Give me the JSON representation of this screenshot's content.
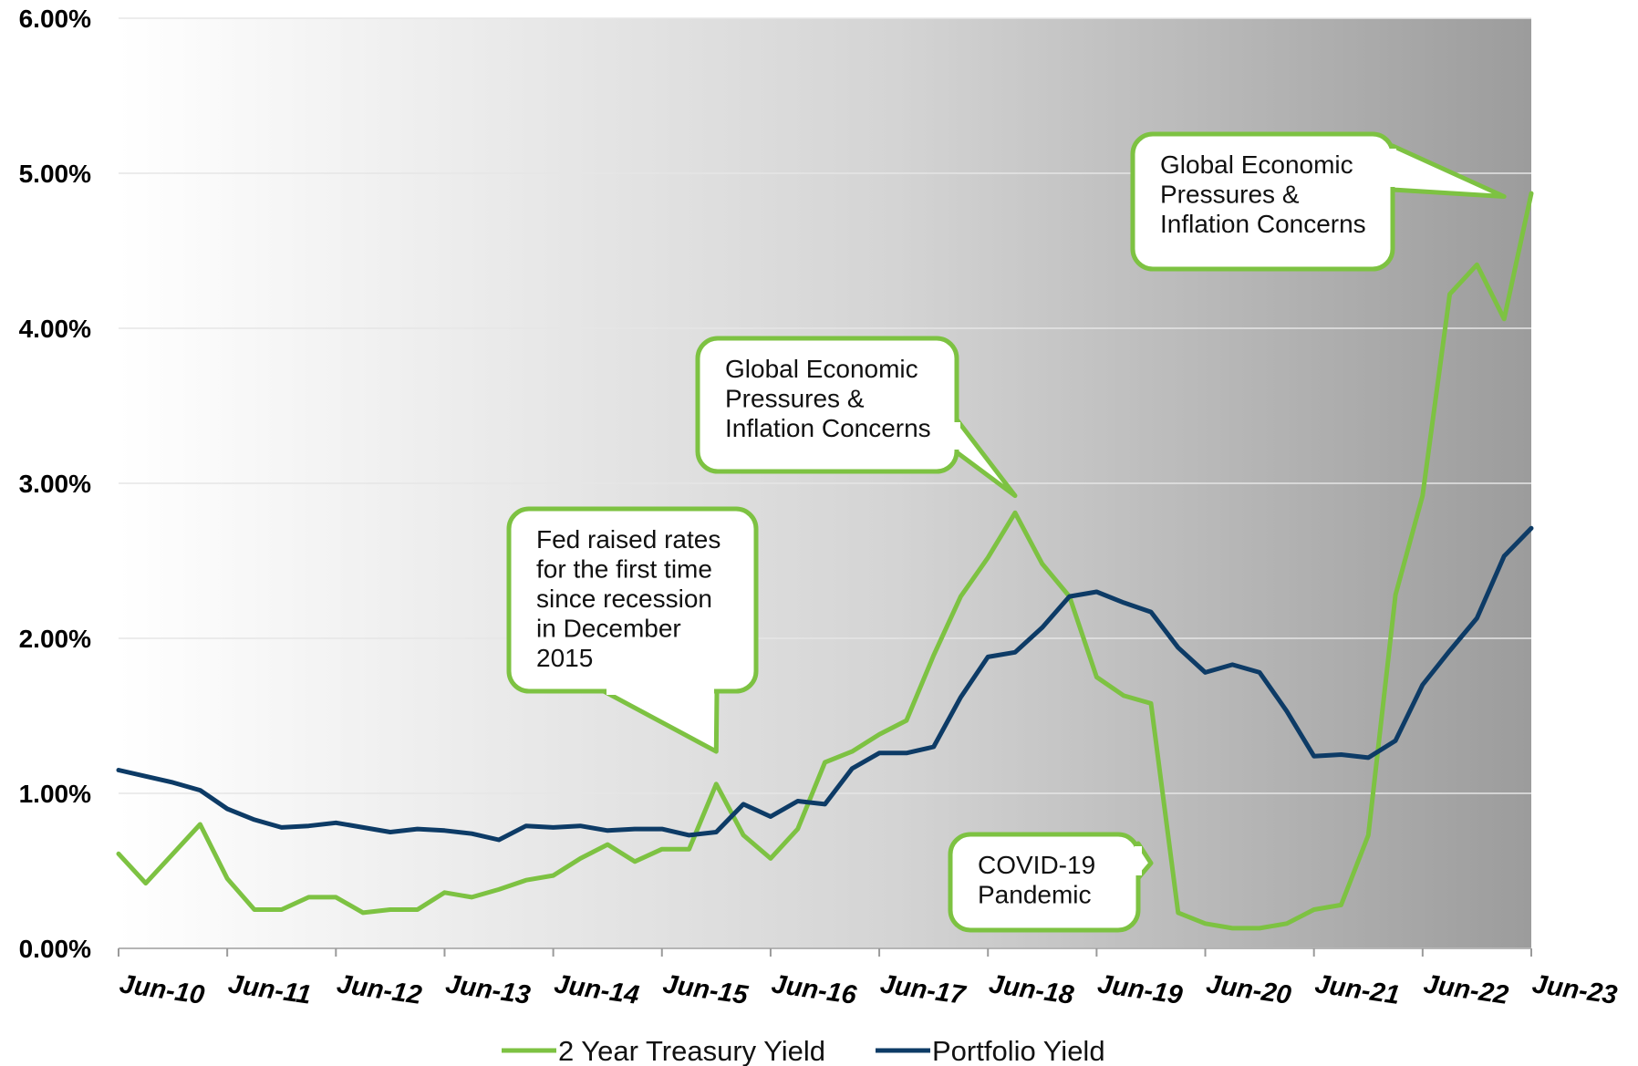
{
  "chart_data": {
    "type": "line",
    "title": "",
    "xlabel": "",
    "ylabel": "",
    "y_tick_labels": [
      "0.00%",
      "1.00%",
      "2.00%",
      "3.00%",
      "4.00%",
      "5.00%",
      "6.00%"
    ],
    "ylim": [
      0,
      6
    ],
    "x_tick_labels": [
      "Jun-10",
      "Jun-11",
      "Jun-12",
      "Jun-13",
      "Jun-14",
      "Jun-15",
      "Jun-16",
      "Jun-17",
      "Jun-18",
      "Jun-19",
      "Jun-20",
      "Jun-21",
      "Jun-22",
      "Jun-23"
    ],
    "xlim": [
      "2010-06",
      "2023-06"
    ],
    "grid": true,
    "legend_position": "bottom",
    "background": "gray gradient, light on left to darker on right",
    "series": [
      {
        "name": "2 Year Treasury Yield",
        "color": "#7DC242",
        "points": [
          [
            "2010-06",
            0.61
          ],
          [
            "2010-09",
            0.42
          ],
          [
            "2010-12",
            0.61
          ],
          [
            "2011-03",
            0.8
          ],
          [
            "2011-06",
            0.45
          ],
          [
            "2011-09",
            0.25
          ],
          [
            "2011-12",
            0.25
          ],
          [
            "2012-03",
            0.33
          ],
          [
            "2012-06",
            0.33
          ],
          [
            "2012-09",
            0.23
          ],
          [
            "2012-12",
            0.25
          ],
          [
            "2013-03",
            0.25
          ],
          [
            "2013-06",
            0.36
          ],
          [
            "2013-09",
            0.33
          ],
          [
            "2013-12",
            0.38
          ],
          [
            "2014-03",
            0.44
          ],
          [
            "2014-06",
            0.47
          ],
          [
            "2014-09",
            0.58
          ],
          [
            "2014-12",
            0.67
          ],
          [
            "2015-03",
            0.56
          ],
          [
            "2015-06",
            0.64
          ],
          [
            "2015-09",
            0.64
          ],
          [
            "2015-12",
            1.06
          ],
          [
            "2016-03",
            0.73
          ],
          [
            "2016-06",
            0.58
          ],
          [
            "2016-09",
            0.77
          ],
          [
            "2016-12",
            1.2
          ],
          [
            "2017-03",
            1.27
          ],
          [
            "2017-06",
            1.38
          ],
          [
            "2017-09",
            1.47
          ],
          [
            "2017-12",
            1.89
          ],
          [
            "2018-03",
            2.27
          ],
          [
            "2018-06",
            2.52
          ],
          [
            "2018-09",
            2.81
          ],
          [
            "2018-12",
            2.48
          ],
          [
            "2019-03",
            2.27
          ],
          [
            "2019-06",
            1.75
          ],
          [
            "2019-09",
            1.63
          ],
          [
            "2019-12",
            1.58
          ],
          [
            "2020-03",
            0.23
          ],
          [
            "2020-06",
            0.16
          ],
          [
            "2020-09",
            0.13
          ],
          [
            "2020-12",
            0.13
          ],
          [
            "2021-03",
            0.16
          ],
          [
            "2021-06",
            0.25
          ],
          [
            "2021-09",
            0.28
          ],
          [
            "2021-12",
            0.73
          ],
          [
            "2022-03",
            2.28
          ],
          [
            "2022-06",
            2.92
          ],
          [
            "2022-09",
            4.22
          ],
          [
            "2022-12",
            4.41
          ],
          [
            "2023-03",
            4.06
          ],
          [
            "2023-06",
            4.87
          ]
        ]
      },
      {
        "name": "Portfolio Yield",
        "color": "#0D3B66",
        "points": [
          [
            "2010-06",
            1.15
          ],
          [
            "2010-09",
            1.11
          ],
          [
            "2010-12",
            1.07
          ],
          [
            "2011-03",
            1.02
          ],
          [
            "2011-06",
            0.9
          ],
          [
            "2011-09",
            0.83
          ],
          [
            "2011-12",
            0.78
          ],
          [
            "2012-03",
            0.79
          ],
          [
            "2012-06",
            0.81
          ],
          [
            "2012-09",
            0.78
          ],
          [
            "2012-12",
            0.75
          ],
          [
            "2013-03",
            0.77
          ],
          [
            "2013-06",
            0.76
          ],
          [
            "2013-09",
            0.74
          ],
          [
            "2013-12",
            0.7
          ],
          [
            "2014-03",
            0.79
          ],
          [
            "2014-06",
            0.78
          ],
          [
            "2014-09",
            0.79
          ],
          [
            "2014-12",
            0.76
          ],
          [
            "2015-03",
            0.77
          ],
          [
            "2015-06",
            0.77
          ],
          [
            "2015-09",
            0.73
          ],
          [
            "2015-12",
            0.75
          ],
          [
            "2016-03",
            0.93
          ],
          [
            "2016-06",
            0.85
          ],
          [
            "2016-09",
            0.95
          ],
          [
            "2016-12",
            0.93
          ],
          [
            "2017-03",
            1.16
          ],
          [
            "2017-06",
            1.26
          ],
          [
            "2017-09",
            1.26
          ],
          [
            "2017-12",
            1.3
          ],
          [
            "2018-03",
            1.62
          ],
          [
            "2018-06",
            1.88
          ],
          [
            "2018-09",
            1.91
          ],
          [
            "2018-12",
            2.07
          ],
          [
            "2019-03",
            2.27
          ],
          [
            "2019-06",
            2.3
          ],
          [
            "2019-09",
            2.23
          ],
          [
            "2019-12",
            2.17
          ],
          [
            "2020-03",
            1.94
          ],
          [
            "2020-06",
            1.78
          ],
          [
            "2020-09",
            1.83
          ],
          [
            "2020-12",
            1.78
          ],
          [
            "2021-03",
            1.53
          ],
          [
            "2021-06",
            1.24
          ],
          [
            "2021-09",
            1.25
          ],
          [
            "2021-12",
            1.23
          ],
          [
            "2022-03",
            1.34
          ],
          [
            "2022-06",
            1.7
          ],
          [
            "2022-09",
            1.92
          ],
          [
            "2022-12",
            2.13
          ],
          [
            "2023-03",
            2.53
          ],
          [
            "2023-06",
            2.71
          ]
        ]
      }
    ],
    "annotations": [
      {
        "lines": [
          "Fed raised rates",
          "for the first time",
          "since recession",
          "in December",
          "2015"
        ],
        "points_to": [
          "2015-12",
          1.27
        ]
      },
      {
        "lines": [
          "Global Economic",
          "Pressures &",
          "Inflation Concerns"
        ],
        "points_to": [
          "2018-09",
          2.92
        ]
      },
      {
        "lines": [
          "COVID-19",
          "Pandemic"
        ],
        "points_to": [
          "2019-12",
          0.55
        ]
      },
      {
        "lines": [
          "Global Economic",
          "Pressures &",
          "Inflation Concerns"
        ],
        "points_to": [
          "2023-03",
          4.85
        ]
      }
    ]
  }
}
